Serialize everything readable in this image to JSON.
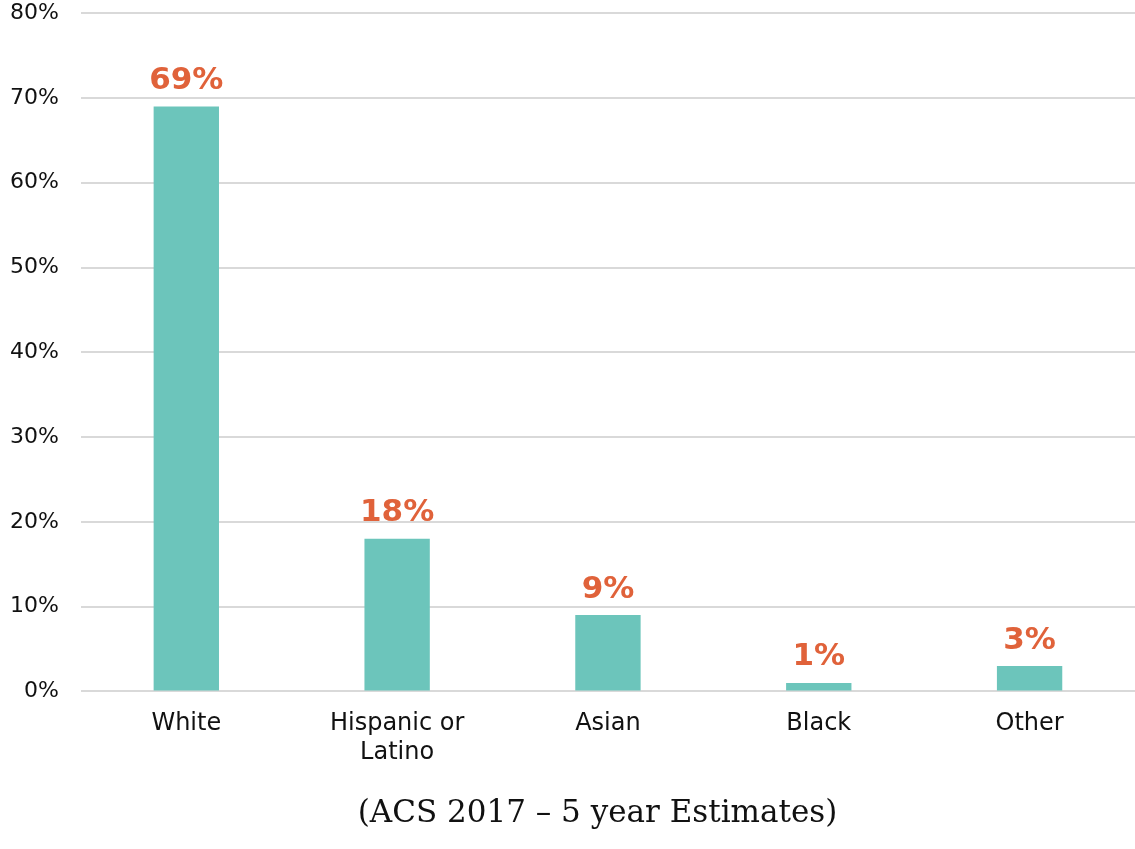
{
  "chart_data": {
    "type": "bar",
    "categories": [
      "White",
      "Hispanic or Latino",
      "Asian",
      "Black",
      "Other"
    ],
    "values": [
      69,
      18,
      9,
      1,
      3
    ],
    "value_labels": [
      "69%",
      "18%",
      "9%",
      "1%",
      "3%"
    ],
    "color": "#6cc5bb",
    "ylim": [
      0,
      80
    ],
    "yticks": [
      {
        "value": 0,
        "label": "0%"
      },
      {
        "value": 10,
        "label": "10%"
      },
      {
        "value": 20,
        "label": "20%"
      },
      {
        "value": 30,
        "label": "30%"
      },
      {
        "value": 40,
        "label": "40%"
      },
      {
        "value": 50,
        "label": "50%"
      },
      {
        "value": 60,
        "label": "60%"
      },
      {
        "value": 70,
        "label": "70%"
      },
      {
        "value": 80,
        "label": "80%"
      }
    ],
    "grid": "y",
    "legend": false,
    "annotations": [
      "(ACS 2017 – 5 year Estimates)"
    ]
  }
}
